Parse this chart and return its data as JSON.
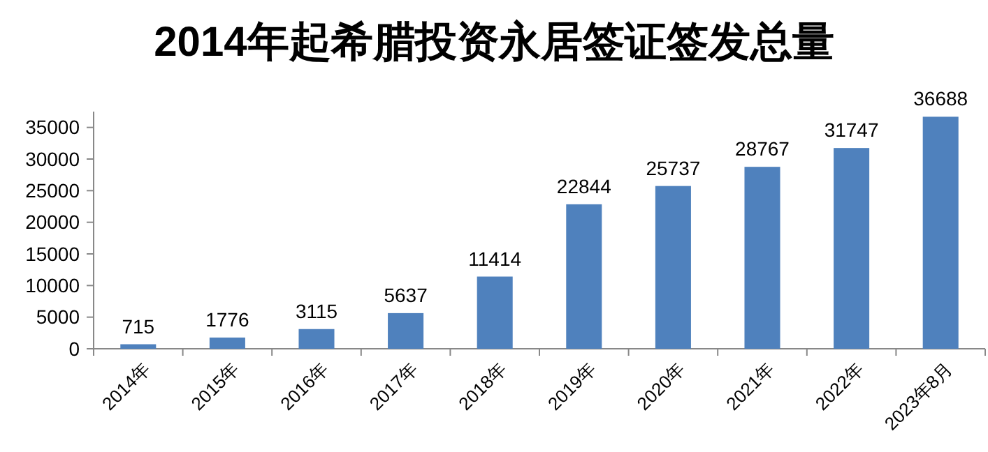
{
  "chart_data": {
    "type": "bar",
    "title": "2014年起希腊投资永居签证签发总量",
    "categories": [
      "2014年",
      "2015年",
      "2016年",
      "2017年",
      "2018年",
      "2019年",
      "2020年",
      "2021年",
      "2022年",
      "2023年8月"
    ],
    "values": [
      715,
      1776,
      3115,
      5637,
      11414,
      22844,
      25737,
      28767,
      31747,
      36688
    ],
    "color": "#4f81bd",
    "ylim": [
      0,
      37500
    ],
    "yticks": [
      0,
      5000,
      10000,
      15000,
      20000,
      25000,
      30000,
      35000
    ],
    "data_labels": true,
    "grid": false
  }
}
